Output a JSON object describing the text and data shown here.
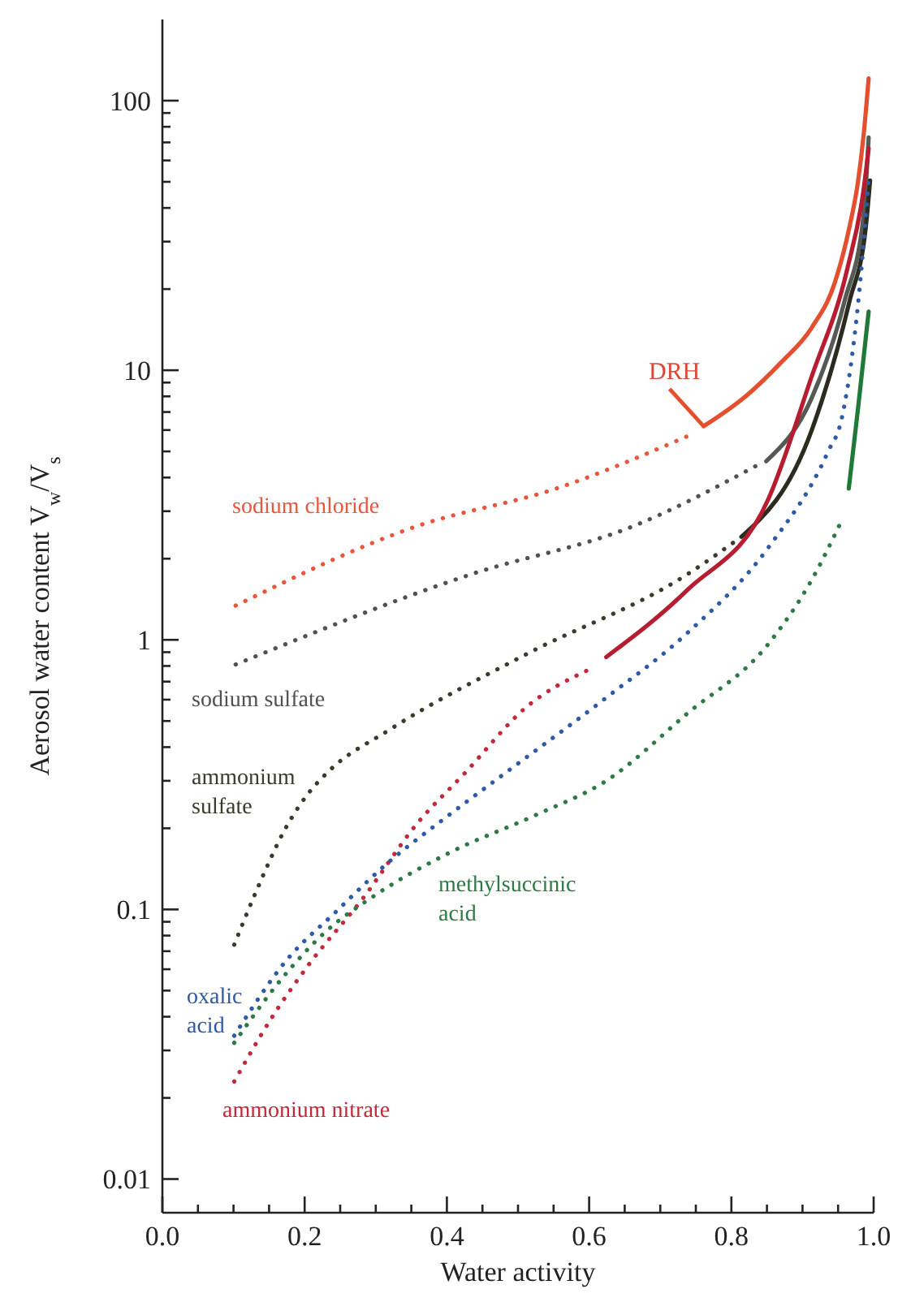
{
  "chart_data": {
    "type": "line",
    "xlabel": "Water activity",
    "ylabel": "Aerosol water content  V$_{w}$/V$_{s}$",
    "xlim": [
      0,
      1
    ],
    "ylim": [
      0.0075,
      200
    ],
    "log": "y",
    "marker": "none",
    "xticks": [
      {
        "value": 0,
        "label": "0.0"
      },
      {
        "value": 0.05,
        "label": null
      },
      {
        "value": 0.1,
        "label": null
      },
      {
        "value": 0.15,
        "label": null
      },
      {
        "value": 0.2,
        "label": "0.2"
      },
      {
        "value": 0.25,
        "label": null
      },
      {
        "value": 0.3,
        "label": null
      },
      {
        "value": 0.35,
        "label": null
      },
      {
        "value": 0.4,
        "label": "0.4"
      },
      {
        "value": 0.45,
        "label": null
      },
      {
        "value": 0.5,
        "label": null
      },
      {
        "value": 0.55,
        "label": null
      },
      {
        "value": 0.6,
        "label": "0.6"
      },
      {
        "value": 0.65,
        "label": null
      },
      {
        "value": 0.7,
        "label": null
      },
      {
        "value": 0.75,
        "label": null
      },
      {
        "value": 0.8,
        "label": "0.8"
      },
      {
        "value": 0.85,
        "label": null
      },
      {
        "value": 0.9,
        "label": null
      },
      {
        "value": 0.95,
        "label": null
      },
      {
        "value": 1,
        "label": "1.0"
      }
    ],
    "yticks": [
      {
        "value": 0.01,
        "label": "0.01"
      },
      {
        "value": 0.02,
        "label": null
      },
      {
        "value": 0.03,
        "label": null
      },
      {
        "value": 0.04,
        "label": null
      },
      {
        "value": 0.05,
        "label": null
      },
      {
        "value": 0.06,
        "label": null
      },
      {
        "value": 0.07,
        "label": null
      },
      {
        "value": 0.08,
        "label": null
      },
      {
        "value": 0.09,
        "label": null
      },
      {
        "value": 0.1,
        "label": "0.1"
      },
      {
        "value": 0.2,
        "label": null
      },
      {
        "value": 0.3,
        "label": null
      },
      {
        "value": 0.4,
        "label": null
      },
      {
        "value": 0.5,
        "label": null
      },
      {
        "value": 0.6,
        "label": null
      },
      {
        "value": 0.7,
        "label": null
      },
      {
        "value": 0.8,
        "label": null
      },
      {
        "value": 0.9,
        "label": null
      },
      1,
      {
        "value": 2,
        "label": null
      },
      {
        "value": 3,
        "label": null
      },
      {
        "value": 4,
        "label": null
      },
      {
        "value": 5,
        "label": null
      },
      {
        "value": 6,
        "label": null
      },
      {
        "value": 7,
        "label": null
      },
      {
        "value": 8,
        "label": null
      },
      {
        "value": 9,
        "label": null
      },
      10,
      {
        "value": 20,
        "label": null
      },
      {
        "value": 30,
        "label": null
      },
      {
        "value": 40,
        "label": null
      },
      {
        "value": 50,
        "label": null
      },
      {
        "value": 60,
        "label": null
      },
      {
        "value": 70,
        "label": null
      },
      {
        "value": 80,
        "label": null
      },
      {
        "value": 90,
        "label": null
      },
      100
    ],
    "series": [
      {
        "name": "sodium chloride",
        "color": "#e8563e",
        "line_style": "dotted",
        "x": [
          0.103,
          0.358,
          0.555,
          0.742
        ],
        "values": [
          1.34,
          2.64,
          3.65,
          5.75
        ]
      },
      {
        "color": "#e4502f",
        "line_style": "solid",
        "x": [
          0.761,
          0.82,
          0.87,
          0.913,
          0.945,
          0.966,
          0.978,
          0.986,
          0.993
        ],
        "values": [
          6.2,
          8,
          10.7,
          14.4,
          21,
          34,
          50,
          75,
          121
        ]
      },
      {
        "name": "sodium sulfate",
        "color": "#4f534f",
        "line_style": "dotted",
        "x": [
          0.103,
          0.434,
          0.662,
          0.845
        ],
        "values": [
          0.81,
          1.75,
          2.64,
          4.57
        ]
      },
      {
        "color": "#555a55",
        "line_style": "solid",
        "x": [
          0.849,
          0.913,
          0.959,
          0.986,
          0.993
        ],
        "values": [
          4.6,
          7.9,
          18,
          37.7,
          73
        ]
      },
      {
        "name": "ammonium sulfate",
        "color": "#3b3a2c",
        "line_style": "dotted",
        "x": [
          0.101,
          0.129,
          0.175,
          0.205,
          0.232,
          0.32,
          0.51,
          0.738,
          0.814
        ],
        "values": [
          0.074,
          0.112,
          0.204,
          0.269,
          0.322,
          0.465,
          0.88,
          1.75,
          2.41
        ]
      },
      {
        "color": "#2b2b20",
        "line_style": "solid",
        "x": [
          0.814,
          0.913,
          0.966,
          0.989,
          0.995
        ],
        "values": [
          2.41,
          6,
          18,
          34,
          50.6
        ]
      },
      {
        "name": "ammonium nitrate",
        "color": "#c02a3a",
        "line_style": "dotted",
        "x": [
          0.101,
          0.152,
          0.205,
          0.282,
          0.358,
          0.426,
          0.51,
          0.605
        ],
        "values": [
          0.023,
          0.039,
          0.062,
          0.11,
          0.208,
          0.322,
          0.558,
          0.787
        ]
      },
      {
        "color": "#b81c30",
        "line_style": "solid",
        "x": [
          0.624,
          0.738,
          0.852,
          0.913,
          0.963,
          0.986,
          0.993
        ],
        "values": [
          0.863,
          1.53,
          3.33,
          9.5,
          23.8,
          47,
          66.5
        ]
      },
      {
        "name": "oxalic acid",
        "color": "#2f5aa8",
        "line_style": "dotted",
        "x": [
          0.101,
          0.175,
          0.244,
          0.312,
          0.403,
          0.483,
          0.624,
          0.738,
          0.852,
          0.936,
          0.955,
          0.986,
          0.993
        ],
        "values": [
          0.034,
          0.065,
          0.098,
          0.145,
          0.224,
          0.322,
          0.61,
          1.06,
          2.2,
          5,
          6.6,
          29.8,
          51.8
        ]
      },
      {
        "name": "methylsuccinic acid",
        "color": "#2e7a45",
        "line_style": "dotted",
        "x": [
          0.101,
          0.167,
          0.228,
          0.297,
          0.403,
          0.525,
          0.624,
          0.738,
          0.852,
          0.913,
          0.955
        ],
        "values": [
          0.032,
          0.055,
          0.082,
          0.112,
          0.162,
          0.224,
          0.3,
          0.533,
          0.966,
          1.67,
          2.77
        ]
      },
      {
        "color": "#1f7a38",
        "line_style": "solid",
        "x": [
          0.965,
          0.978,
          0.993
        ],
        "values": [
          3.64,
          7.2,
          16.5
        ]
      }
    ],
    "annotations": [
      {
        "text": "DRH",
        "x": 0.761,
        "y": 6.2
      }
    ]
  }
}
